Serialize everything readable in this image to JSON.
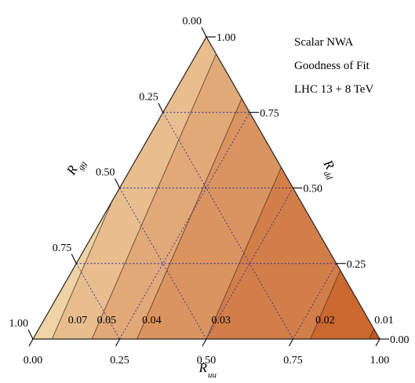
{
  "chart_data": {
    "type": "ternary-contour",
    "annotations": [
      "Scalar NWA",
      "Goodness of Fit",
      "LHC 13 + 8 TeV"
    ],
    "axes": {
      "uu": {
        "label_main": "R",
        "label_sub": "uu"
      },
      "dd": {
        "label_main": "R",
        "label_sub": "dd"
      },
      "gg": {
        "label_main": "R",
        "label_sub": "gg"
      }
    },
    "ticks": [
      0.0,
      0.25,
      0.5,
      0.75,
      1.0
    ],
    "tick_labels": [
      "0.00",
      "0.25",
      "0.50",
      "0.75",
      "1.00"
    ],
    "grid": "dashed",
    "contours": {
      "variable": "goodness of fit",
      "levels": [
        0.01,
        0.02,
        0.03,
        0.04,
        0.05,
        0.07
      ],
      "level_labels": [
        "0.01",
        "0.02",
        "0.03",
        "0.04",
        "0.05",
        "0.07"
      ],
      "max_at": "R_uu = 0, R_gg = 1",
      "min_at": "R_uu = 1",
      "color_low": "#c4541a",
      "color_high": "#efd3a6"
    }
  }
}
